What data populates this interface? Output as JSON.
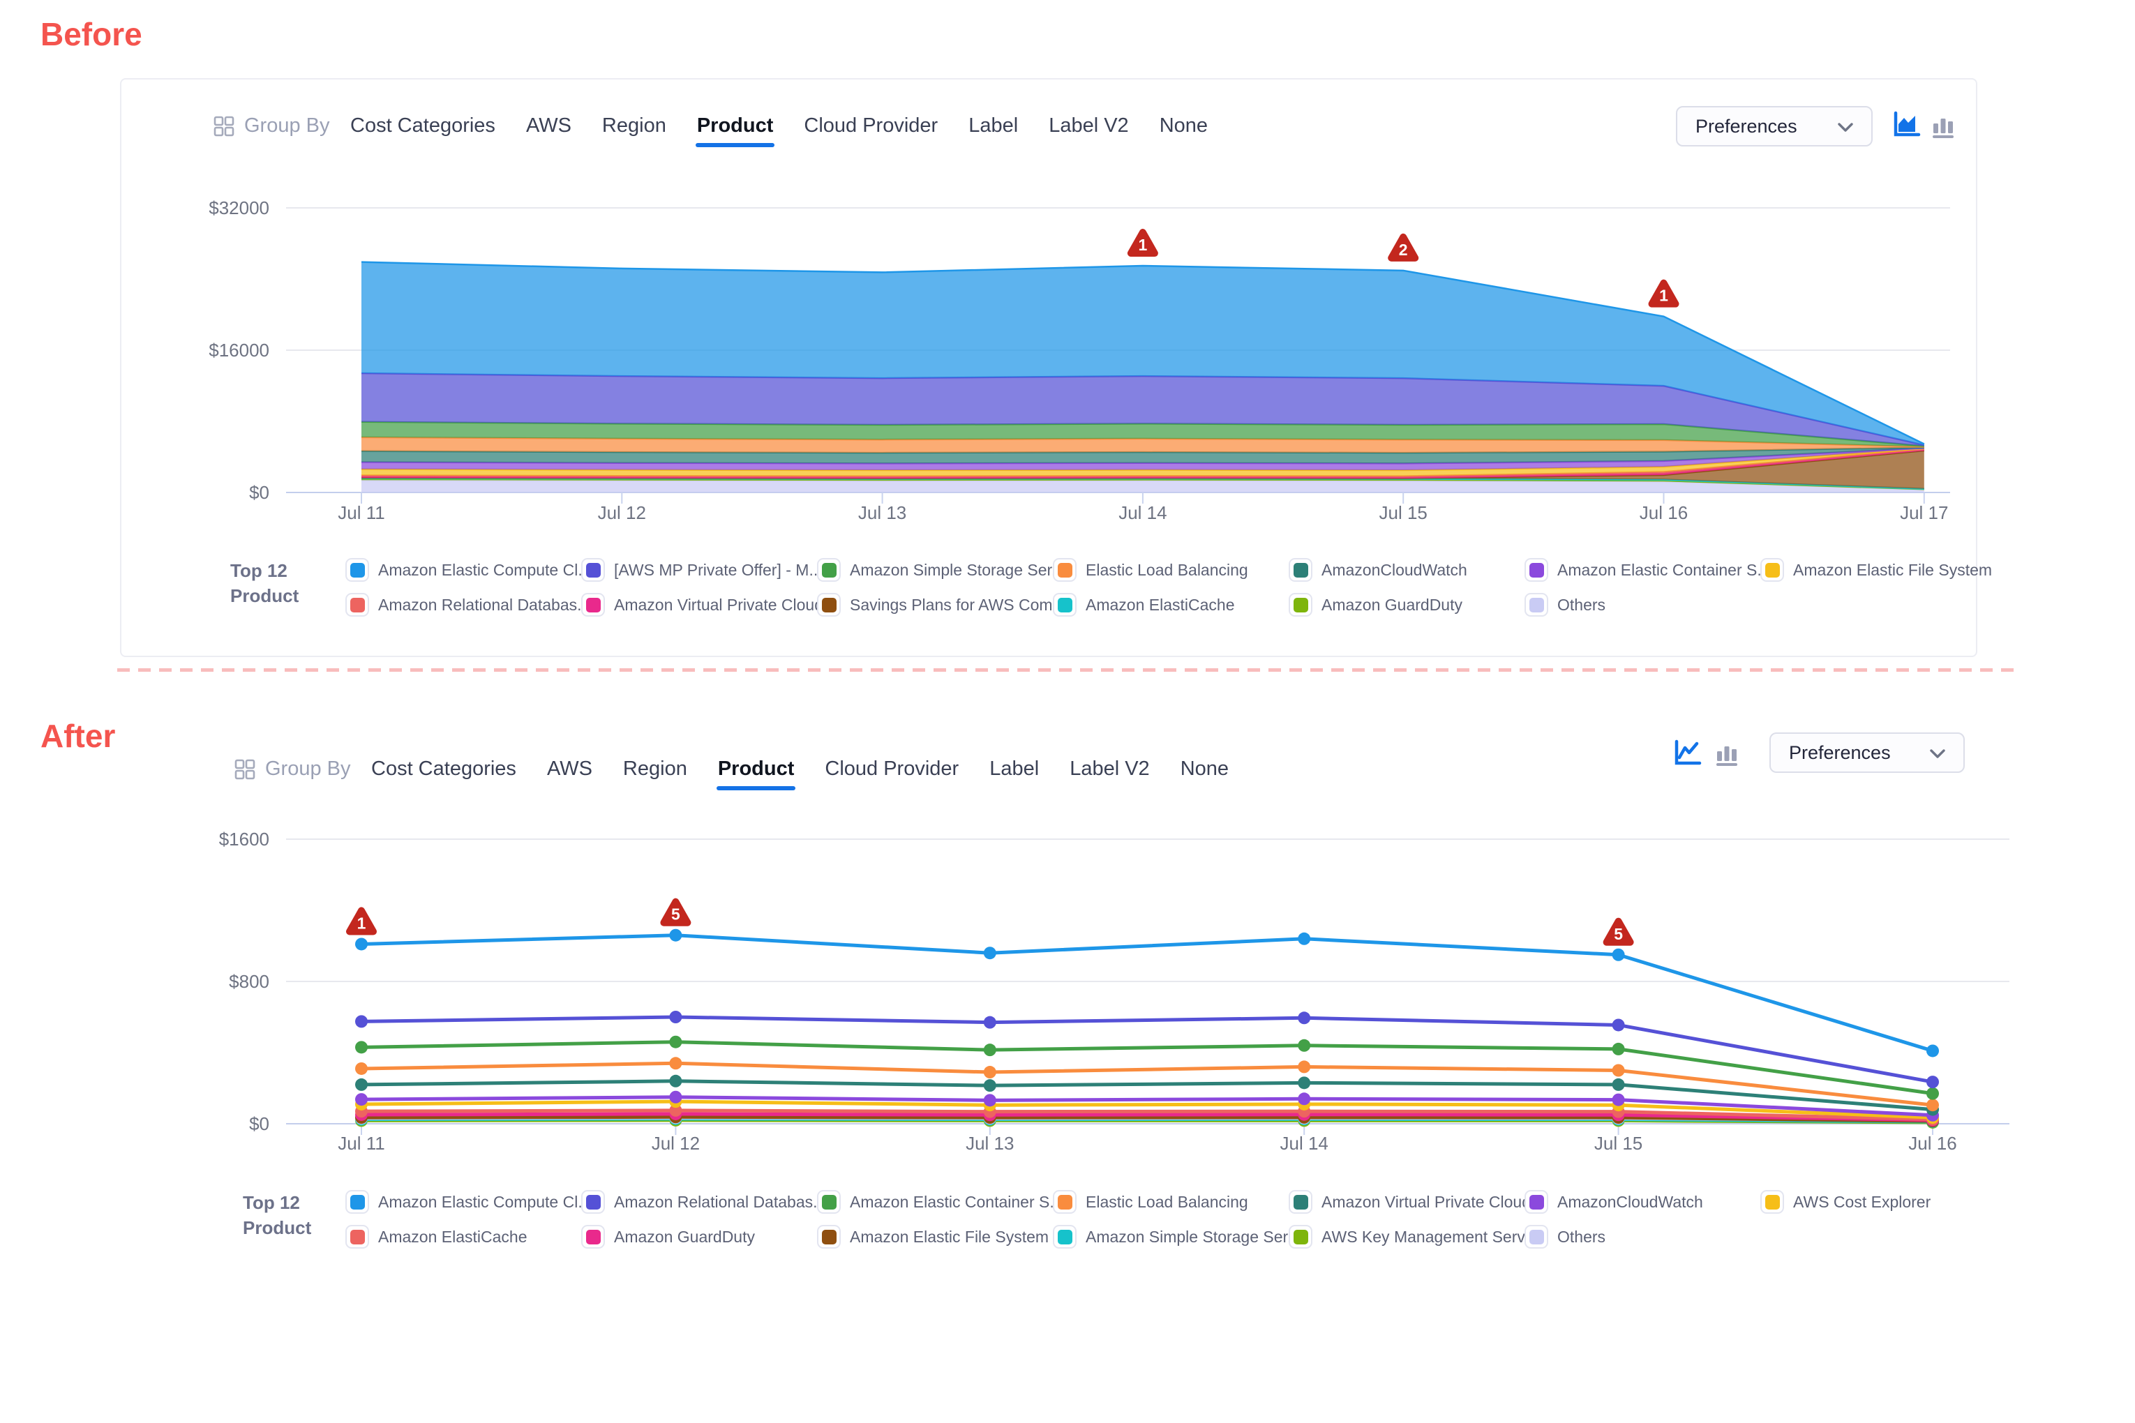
{
  "page": {
    "before_label": "Before",
    "after_label": "After"
  },
  "toolbar": {
    "group_by": "Group By",
    "tabs": [
      "Cost Categories",
      "AWS",
      "Region",
      "Product",
      "Cloud Provider",
      "Label",
      "Label V2",
      "None"
    ],
    "active_tab": "Product",
    "preferences": "Preferences"
  },
  "before": {
    "chart_icons": [
      "area-chart",
      "bar-chart"
    ],
    "active_icon": "area-chart",
    "legend_title": [
      "Top 12",
      "Product"
    ],
    "legend": [
      {
        "label": "Amazon Elastic Compute Cl...",
        "color": "#1E96E8"
      },
      {
        "label": "[AWS MP Private Offer] - M...",
        "color": "#5551D6"
      },
      {
        "label": "Amazon Simple Storage Ser...",
        "color": "#43A047"
      },
      {
        "label": "Elastic Load Balancing",
        "color": "#F98C3E"
      },
      {
        "label": "AmazonCloudWatch",
        "color": "#2D8077"
      },
      {
        "label": "Amazon Elastic Container S...",
        "color": "#8B49DD"
      },
      {
        "label": "Amazon Elastic File System",
        "color": "#F6BE18"
      },
      {
        "label": "Amazon Relational Databas...",
        "color": "#ED6460"
      },
      {
        "label": "Amazon Virtual Private Cloud",
        "color": "#E9298C"
      },
      {
        "label": "Savings Plans for AWS Com...",
        "color": "#8F4F10"
      },
      {
        "label": "Amazon ElastiCache",
        "color": "#16C2CB"
      },
      {
        "label": "Amazon GuardDuty",
        "color": "#7EB50C"
      },
      {
        "label": "Others",
        "color": "#C9CBF4"
      }
    ]
  },
  "after": {
    "chart_icons": [
      "line-chart",
      "bar-chart"
    ],
    "active_icon": "line-chart",
    "legend_title": [
      "Top 12",
      "Product"
    ],
    "legend": [
      {
        "label": "Amazon Elastic Compute Cl...",
        "color": "#1E96E8"
      },
      {
        "label": "Amazon Relational Databas...",
        "color": "#5551D6"
      },
      {
        "label": "Amazon Elastic Container S...",
        "color": "#43A047"
      },
      {
        "label": "Elastic Load Balancing",
        "color": "#F98C3E"
      },
      {
        "label": "Amazon Virtual Private Cloud",
        "color": "#2D8077"
      },
      {
        "label": "AmazonCloudWatch",
        "color": "#8B49DD"
      },
      {
        "label": "AWS Cost Explorer",
        "color": "#F6BE18"
      },
      {
        "label": "Amazon ElastiCache",
        "color": "#ED6460"
      },
      {
        "label": "Amazon GuardDuty",
        "color": "#E9298C"
      },
      {
        "label": "Amazon Elastic File System",
        "color": "#8F4F10"
      },
      {
        "label": "Amazon Simple Storage Ser...",
        "color": "#16C2CB"
      },
      {
        "label": "AWS Key Management Serv...",
        "color": "#7EB50C"
      },
      {
        "label": "Others",
        "color": "#C9CBF4"
      }
    ]
  },
  "chart_data": [
    {
      "id": "before",
      "type": "area",
      "stacked": true,
      "title": "Top 12 Product cost (stacked area, before)",
      "x": [
        "Jul 11",
        "Jul 12",
        "Jul 13",
        "Jul 14",
        "Jul 15",
        "Jul 16",
        "Jul 17"
      ],
      "ylim": [
        0,
        32000
      ],
      "y_ticks": [
        {
          "value": 0,
          "label": "$0"
        },
        {
          "value": 16000,
          "label": "$16000"
        },
        {
          "value": 32000,
          "label": "$32000"
        }
      ],
      "grid": true,
      "legend_position": "bottom",
      "series_bottom_to_top": [
        {
          "name": "Others",
          "color": "#C9CBF4",
          "values": [
            1400,
            1360,
            1340,
            1360,
            1340,
            1250,
            350
          ]
        },
        {
          "name": "Amazon GuardDuty",
          "color": "#7EB50C",
          "values": [
            90,
            88,
            86,
            88,
            86,
            80,
            20
          ]
        },
        {
          "name": "Amazon ElastiCache",
          "color": "#16C2CB",
          "values": [
            150,
            146,
            143,
            146,
            143,
            130,
            40
          ]
        },
        {
          "name": "Savings Plans for AWS Com...",
          "color": "#8F4F10",
          "values": [
            40,
            40,
            40,
            40,
            40,
            500,
            4300
          ]
        },
        {
          "name": "Amazon Virtual Private Cloud",
          "color": "#E9298C",
          "values": [
            80,
            78,
            76,
            78,
            76,
            150,
            80
          ]
        },
        {
          "name": "Amazon Relational Databas...",
          "color": "#ED6460",
          "values": [
            160,
            155,
            150,
            155,
            150,
            200,
            90
          ]
        },
        {
          "name": "Amazon Elastic File System",
          "color": "#F6BE18",
          "values": [
            700,
            680,
            670,
            680,
            670,
            580,
            60
          ]
        },
        {
          "name": "Amazon Elastic Container S...",
          "color": "#8B49DD",
          "values": [
            790,
            770,
            760,
            770,
            760,
            650,
            50
          ]
        },
        {
          "name": "AmazonCloudWatch",
          "color": "#2D8077",
          "values": [
            1250,
            1220,
            1200,
            1220,
            1200,
            1050,
            70
          ]
        },
        {
          "name": "Elastic Load Balancing",
          "color": "#F98C3E",
          "values": [
            1550,
            1510,
            1480,
            1510,
            1480,
            1300,
            80
          ]
        },
        {
          "name": "Amazon Simple Storage Ser...",
          "color": "#43A047",
          "values": [
            1730,
            1690,
            1660,
            1690,
            1660,
            1800,
            90
          ]
        },
        {
          "name": "[AWS MP Private Offer] - M...",
          "color": "#5551D6",
          "values": [
            5470,
            5350,
            5250,
            5350,
            5250,
            4300,
            100
          ]
        },
        {
          "name": "Amazon Elastic Compute Cl...",
          "color": "#1E96E8",
          "values": [
            12500,
            12100,
            11900,
            12400,
            12100,
            7800,
            120
          ]
        }
      ],
      "anomaly_markers": [
        {
          "x": "Jul 14",
          "count": 1
        },
        {
          "x": "Jul 15",
          "count": 2
        },
        {
          "x": "Jul 16",
          "count": 1
        }
      ],
      "marker_color": "#C3271E"
    },
    {
      "id": "after",
      "type": "line",
      "stacked": false,
      "title": "Top 12 Product cost (lines, after)",
      "x": [
        "Jul 11",
        "Jul 12",
        "Jul 13",
        "Jul 14",
        "Jul 15",
        "Jul 16"
      ],
      "ylim": [
        0,
        1600
      ],
      "y_ticks": [
        {
          "value": 0,
          "label": "$0"
        },
        {
          "value": 800,
          "label": "$800"
        },
        {
          "value": 1600,
          "label": "$1600"
        }
      ],
      "grid": true,
      "legend_position": "bottom",
      "series_bottom_to_top": [
        {
          "name": "AWS Key Management Serv...",
          "color": "#7EB50C",
          "values": [
            18,
            20,
            18,
            18,
            18,
            8
          ]
        },
        {
          "name": "Amazon Simple Storage Ser...",
          "color": "#16C2CB",
          "values": [
            25,
            28,
            25,
            26,
            25,
            12
          ]
        },
        {
          "name": "Others",
          "color": "#C9CBF4",
          "values": [
            31,
            34,
            31,
            32,
            31,
            18
          ]
        },
        {
          "name": "Amazon Elastic File System",
          "color": "#8F4F10",
          "values": [
            35,
            38,
            35,
            36,
            35,
            15
          ]
        },
        {
          "name": "Amazon GuardDuty",
          "color": "#E9298C",
          "values": [
            51,
            55,
            50,
            52,
            50,
            20
          ]
        },
        {
          "name": "Amazon ElastiCache",
          "color": "#ED6460",
          "values": [
            70,
            75,
            68,
            70,
            68,
            25
          ]
        },
        {
          "name": "AWS Cost Explorer",
          "color": "#F6BE18",
          "values": [
            110,
            125,
            105,
            110,
            105,
            35
          ]
        },
        {
          "name": "AmazonCloudWatch",
          "color": "#8B49DD",
          "values": [
            137,
            150,
            132,
            140,
            135,
            48
          ]
        },
        {
          "name": "Amazon Virtual Private Cloud",
          "color": "#2D8077",
          "values": [
            220,
            240,
            215,
            230,
            220,
            80
          ]
        },
        {
          "name": "Elastic Load Balancing",
          "color": "#F98C3E",
          "values": [
            310,
            340,
            290,
            320,
            300,
            105
          ]
        },
        {
          "name": "Amazon Elastic Container S...",
          "color": "#43A047",
          "values": [
            430,
            460,
            415,
            440,
            420,
            170
          ]
        },
        {
          "name": "Amazon Relational Databas...",
          "color": "#5551D6",
          "values": [
            575,
            600,
            570,
            595,
            555,
            235
          ]
        },
        {
          "name": "Amazon Elastic Compute Cl...",
          "color": "#1E96E8",
          "values": [
            1010,
            1060,
            960,
            1040,
            950,
            410
          ]
        }
      ],
      "anomaly_markers": [
        {
          "x": "Jul 11",
          "count": 1
        },
        {
          "x": "Jul 12",
          "count": 5
        },
        {
          "x": "Jul 15",
          "count": 5
        }
      ],
      "marker_color": "#C3271E"
    }
  ]
}
